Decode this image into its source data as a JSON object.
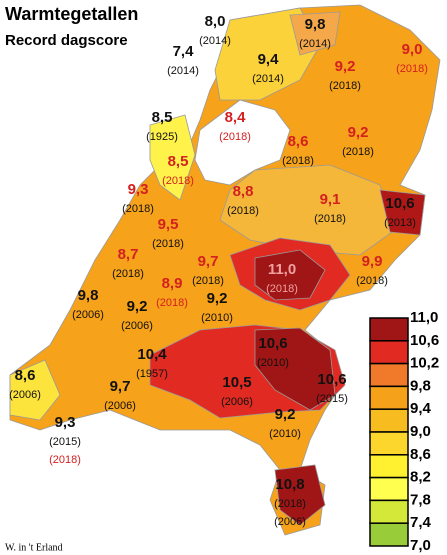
{
  "header": {
    "title": "Warmtegetallen",
    "subtitle": "Record dagscore"
  },
  "stations": [
    {
      "value": "8,0",
      "years": [
        "(2014)"
      ]
    },
    {
      "value": "7,4",
      "years": [
        "(2014)"
      ]
    },
    {
      "value": "9,8",
      "years": [
        "(2014)"
      ]
    },
    {
      "value": "9,0",
      "years": [
        "(2018)"
      ]
    },
    {
      "value": "9,4",
      "years": [
        "(2014)"
      ]
    },
    {
      "value": "9,2",
      "years": [
        "(2018)"
      ]
    },
    {
      "value": "8,5",
      "years": [
        "(1925)"
      ]
    },
    {
      "value": "8,4",
      "years": [
        "(2018)"
      ]
    },
    {
      "value": "8,6",
      "years": [
        "(2018)"
      ]
    },
    {
      "value": "9,2",
      "years": [
        "(2018)"
      ]
    },
    {
      "value": "8,5",
      "years": [
        "(2018)"
      ]
    },
    {
      "value": "9,3",
      "years": [
        "(2018)"
      ]
    },
    {
      "value": "8,8",
      "years": [
        "(2018)"
      ]
    },
    {
      "value": "9,1",
      "years": [
        "(2018)"
      ]
    },
    {
      "value": "10,6",
      "years": [
        "(2013)"
      ]
    },
    {
      "value": "9,5",
      "years": [
        "(2018)"
      ]
    },
    {
      "value": "8,7",
      "years": [
        "(2018)"
      ]
    },
    {
      "value": "9,7",
      "years": [
        "(2018)"
      ]
    },
    {
      "value": "11,0",
      "years": [
        "(2018)"
      ]
    },
    {
      "value": "9,9",
      "years": [
        "(2018)"
      ]
    },
    {
      "value": "8,9",
      "years": [
        "(2018)"
      ]
    },
    {
      "value": "9,8",
      "years": [
        "(2006)"
      ]
    },
    {
      "value": "9,2",
      "years": [
        "(2006)"
      ]
    },
    {
      "value": "9,2",
      "years": [
        "(2010)"
      ]
    },
    {
      "value": "10,4",
      "years": [
        "(1957)"
      ]
    },
    {
      "value": "10,6",
      "years": [
        "(2010)"
      ]
    },
    {
      "value": "10,5",
      "years": [
        "(2006)"
      ]
    },
    {
      "value": "10,6",
      "years": [
        "(2015)"
      ]
    },
    {
      "value": "8,6",
      "years": [
        "(2006)"
      ]
    },
    {
      "value": "9,7",
      "years": [
        "(2006)"
      ]
    },
    {
      "value": "9,2",
      "years": [
        "(2010)"
      ]
    },
    {
      "value": "9,3",
      "years": [
        "(2015)",
        "(2018)"
      ]
    },
    {
      "value": "10,8",
      "years": [
        "(2018)",
        "(2006)"
      ]
    }
  ],
  "legend": {
    "ticks": [
      "11,0",
      "10,6",
      "10,2",
      "9,8",
      "9,4",
      "9,0",
      "8,6",
      "8,2",
      "7,8",
      "7,4",
      "7,0"
    ]
  },
  "credit": "W. in 't Erland"
}
